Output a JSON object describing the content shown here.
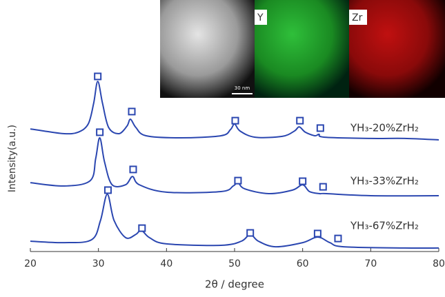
{
  "chart_data": {
    "type": "line",
    "xlabel": "2θ / degree",
    "ylabel": "Intensity(a.u.)",
    "xlim": [
      20,
      80
    ],
    "xticks": [
      20,
      30,
      40,
      50,
      60,
      70,
      80
    ],
    "ylim": [
      0,
      100
    ],
    "series": [
      {
        "name": "YH₃-20%ZrH₂",
        "color": "#2a46b0",
        "x": [
          20,
          22,
          25,
          27,
          28.5,
          29.3,
          29.9,
          30.6,
          31.5,
          33,
          34.2,
          34.7,
          35.5,
          37,
          42,
          48,
          49.4,
          50,
          50.8,
          53,
          57,
          58.8,
          59.5,
          60.4,
          61.8,
          62.4,
          63.2,
          70,
          75,
          80
        ],
        "values": [
          59.3,
          58.3,
          57,
          57.7,
          61.7,
          71.7,
          82.3,
          71.7,
          60,
          57,
          60.7,
          64,
          60,
          56,
          55,
          56,
          59,
          61.7,
          58.3,
          55.3,
          55.7,
          58.3,
          60.3,
          57.7,
          56,
          56.7,
          55.3,
          54.7,
          54.7,
          54
        ],
        "peak_x": [
          29.9,
          34.9,
          50.1,
          59.6,
          62.6
        ],
        "peak_y": [
          84.7,
          67.7,
          63.3,
          63.3,
          59.7
        ]
      },
      {
        "name": "YH₃-33%ZrH₂",
        "color": "#2a46b0",
        "x": [
          20,
          25,
          28.8,
          29.6,
          30.2,
          30.9,
          32,
          34,
          35,
          36,
          40,
          48,
          49.8,
          50.5,
          51.5,
          55,
          58.5,
          60,
          61,
          62.5,
          63.5,
          70,
          80
        ],
        "values": [
          33.3,
          31.7,
          34.3,
          45,
          55,
          43.3,
          32.3,
          32.3,
          36.3,
          32.3,
          28.7,
          29,
          31.7,
          33.3,
          30.3,
          28,
          29.7,
          32.3,
          29,
          28,
          28,
          27,
          27
        ],
        "peak_x": [
          30.2,
          35.1,
          50.5,
          60,
          63
        ],
        "peak_y": [
          57.7,
          39.7,
          34.3,
          34,
          31.3
        ]
      },
      {
        "name": "YH₃-67%ZrH₂",
        "color": "#2a46b0",
        "x": [
          20,
          25,
          29,
          30.3,
          31.3,
          32.3,
          34,
          35.5,
          36.3,
          37.5,
          40,
          48,
          51,
          52.3,
          53.5,
          56,
          60,
          62.2,
          64,
          66,
          75,
          80
        ],
        "values": [
          5,
          4.3,
          5.7,
          15,
          27.7,
          15,
          6.7,
          8.3,
          10.3,
          6.7,
          3.7,
          3,
          5,
          8.3,
          5,
          2.3,
          4.3,
          7,
          4.3,
          2.3,
          1.7,
          1.7
        ],
        "peak_x": [
          31.4,
          36.4,
          52.3,
          62.2,
          65.2
        ],
        "peak_y": [
          29.7,
          11.3,
          9,
          8.7,
          6.3
        ]
      }
    ],
    "inset_labels": [
      "Y",
      "Zr"
    ],
    "scale_bar": "30 nm"
  }
}
